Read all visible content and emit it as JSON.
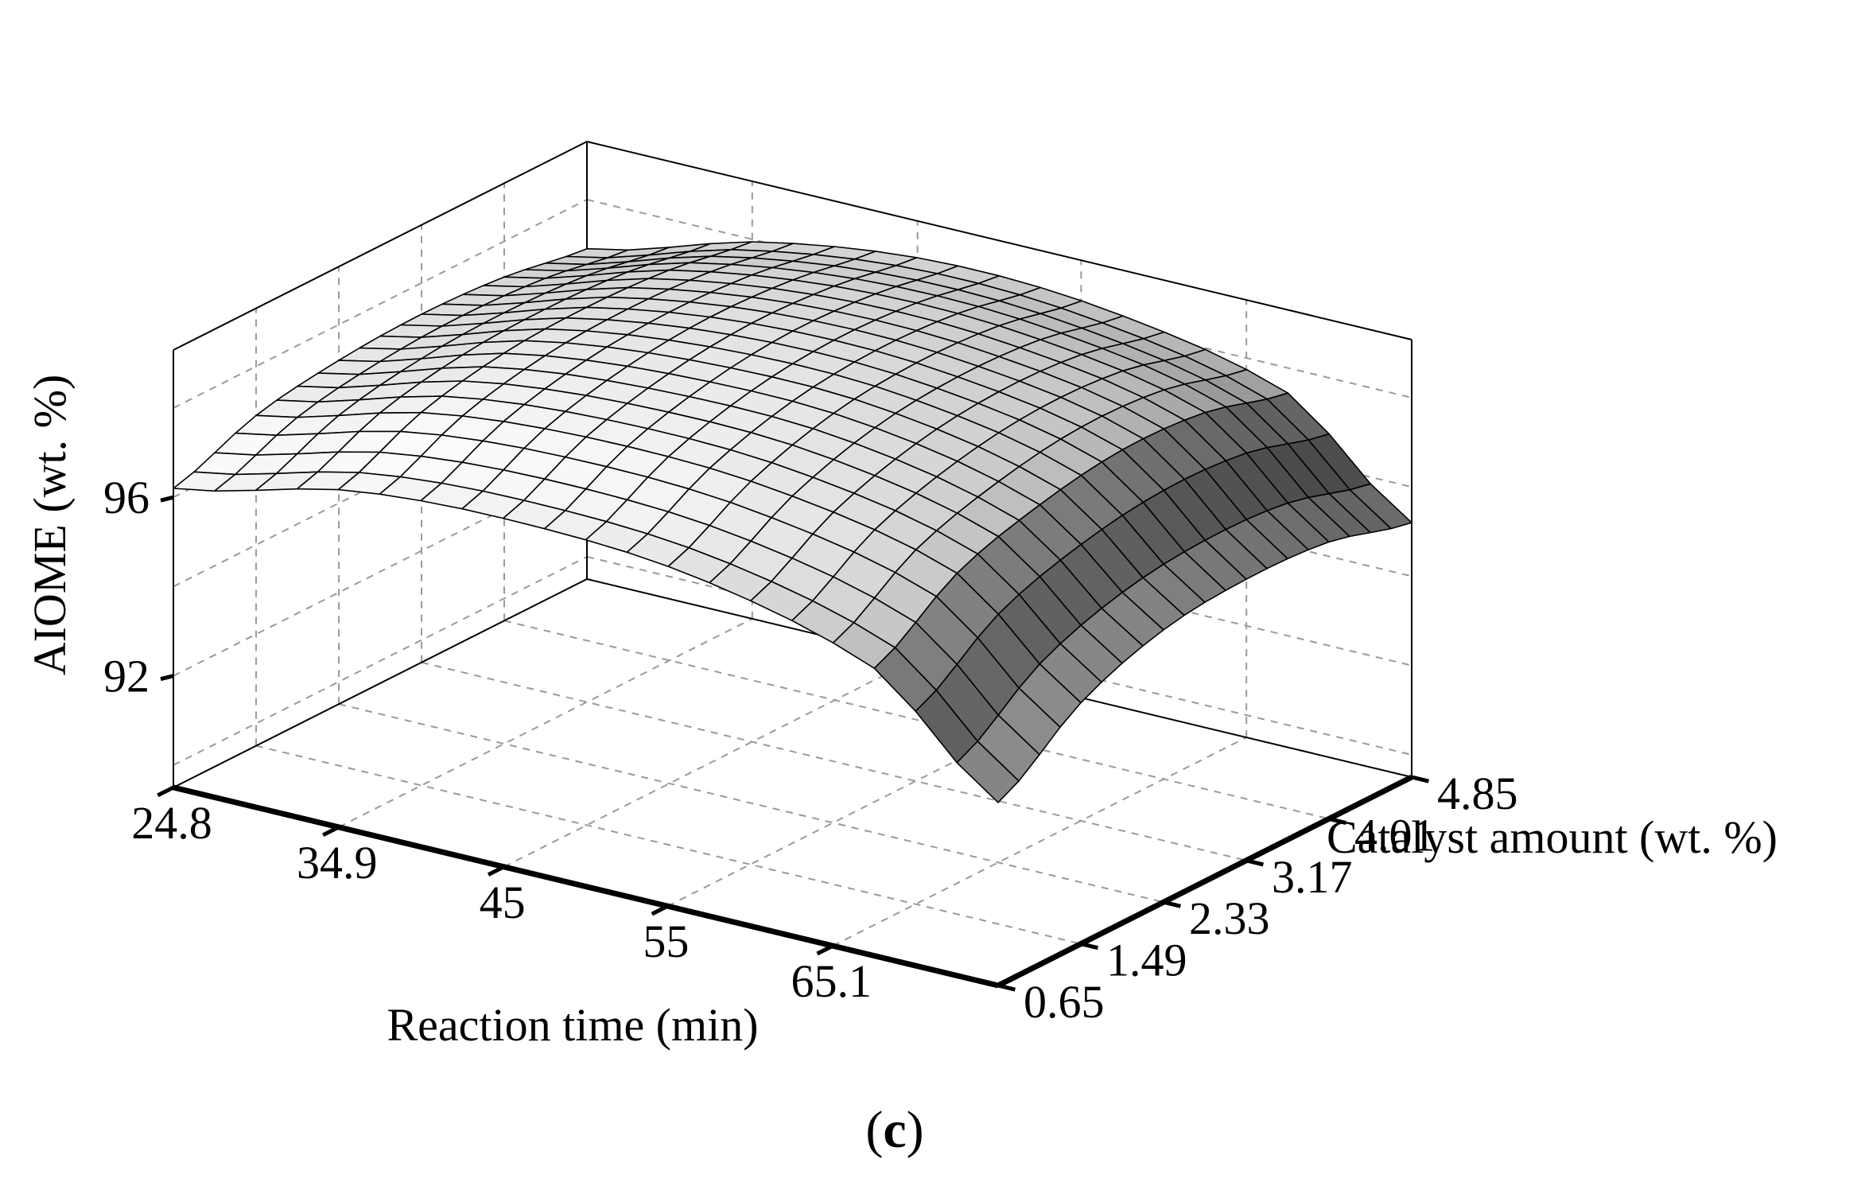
{
  "chart_data": {
    "type": "surface3d",
    "panel_label": "c",
    "x_axis": {
      "label": "Reaction time (min)",
      "ticks": [
        "24.8",
        "34.9",
        "45",
        "55",
        "65.1"
      ],
      "range": [
        24.8,
        75.2
      ]
    },
    "y_axis": {
      "label": "Catalyst amount  (wt. %)",
      "ticks": [
        "0.65",
        "1.49",
        "2.33",
        "3.17",
        "4.01",
        "4.85"
      ],
      "range": [
        0.65,
        4.85
      ]
    },
    "z_axis": {
      "label": "AIOME  (wt. %)",
      "ticks": [
        "92",
        "96"
      ],
      "range": [
        89.5,
        99.3
      ]
    },
    "surface": {
      "x": [
        24.8,
        35.6,
        46.3,
        57.1,
        67.9,
        75.2
      ],
      "y": [
        0.65,
        1.49,
        2.33,
        3.17,
        4.01,
        4.85
      ],
      "z": [
        [
          96.2,
          96.9,
          97.2,
          97.3,
          97.2,
          96.9
        ],
        [
          97.1,
          97.9,
          98.3,
          98.4,
          98.3,
          98.0
        ],
        [
          97.3,
          98.2,
          98.7,
          98.9,
          98.8,
          98.5
        ],
        [
          97.0,
          98.0,
          98.6,
          98.8,
          98.7,
          98.3
        ],
        [
          95.9,
          97.1,
          97.7,
          98.0,
          97.9,
          97.4
        ],
        [
          93.6,
          94.9,
          95.6,
          95.8,
          95.7,
          95.2
        ]
      ],
      "colormap": "grayscale"
    }
  }
}
